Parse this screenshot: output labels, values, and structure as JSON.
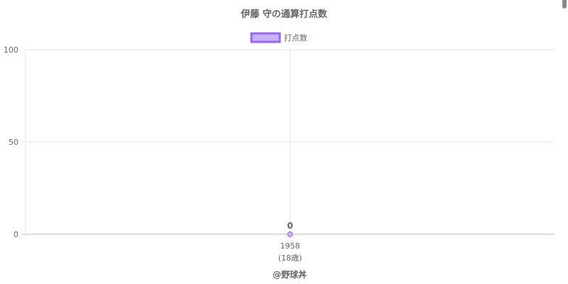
{
  "chart_data": {
    "type": "line",
    "title": "伊藤 守の通算打点数",
    "categories": [
      "1958"
    ],
    "category_sublabels": [
      "(18歳)"
    ],
    "series": [
      {
        "name": "打点数",
        "values": [
          0
        ],
        "color": "#9966ff",
        "fill": "#c9b3ff"
      }
    ],
    "data_labels": [
      "0"
    ],
    "ylim": [
      0,
      100
    ],
    "yticks": [
      "0",
      "50",
      "100"
    ],
    "grid": true,
    "legend": "top",
    "xlabel": "",
    "ylabel": ""
  },
  "footer": {
    "credit": "@野球丼"
  }
}
